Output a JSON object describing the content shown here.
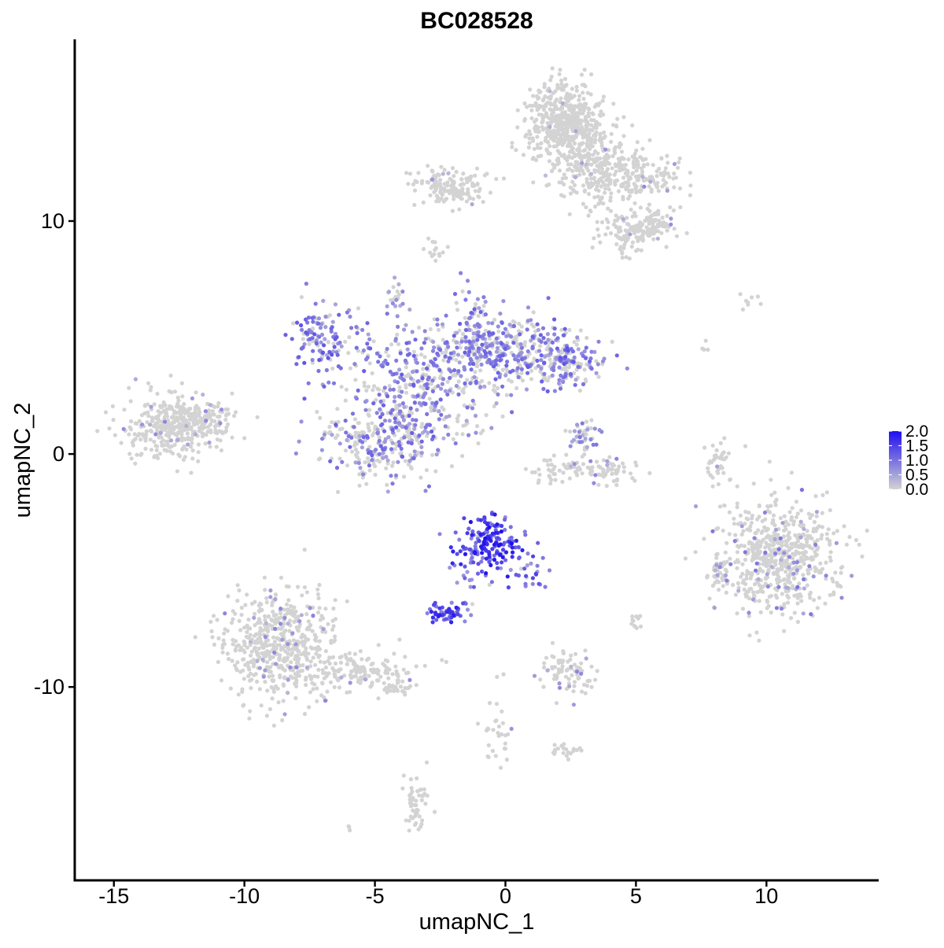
{
  "chart_data": {
    "type": "scatter",
    "title": "BC028528",
    "xlabel": "umapNC_1",
    "ylabel": "umapNC_2",
    "xlim": [
      -16.5,
      14.3
    ],
    "ylim": [
      -18.3,
      17.8
    ],
    "xticks": [
      -15,
      -10,
      -5,
      0,
      5,
      10
    ],
    "xtick_labels": [
      "-15",
      "-10",
      "-5",
      "0",
      "5",
      "10"
    ],
    "yticks": [
      -10,
      0,
      10
    ],
    "ytick_labels": [
      "-10",
      "0",
      "10"
    ],
    "grid": false,
    "legend": {
      "position": "right",
      "type": "colorbar",
      "title": "",
      "min": 0.0,
      "max": 2.0,
      "ticks": [
        0.0,
        0.5,
        1.0,
        1.5,
        2.0
      ],
      "tick_labels": [
        "0.0",
        "0.5",
        "1.0",
        "1.5",
        "2.0"
      ],
      "low_color": "#d3d3d3",
      "high_color": "#1f0ff0"
    },
    "colors": {
      "low": "#d3d3d3",
      "high": "#1f0ff0"
    },
    "expression_scale": "expression level 0.0 (grey) to 2.0 (blue)",
    "clusters": [
      {
        "cx": 2.3,
        "cy": 14.3,
        "sx": 0.7,
        "sy": 0.8,
        "n": 500,
        "expr_p": 0.01,
        "expr_max": 0.6
      },
      {
        "cx": 3.5,
        "cy": 12.5,
        "sx": 0.9,
        "sy": 1.0,
        "n": 260,
        "expr_p": 0.02,
        "expr_max": 0.7
      },
      {
        "cx": 5.0,
        "cy": 11.8,
        "sx": 0.9,
        "sy": 0.5,
        "n": 160,
        "expr_p": 0.03,
        "expr_max": 0.8
      },
      {
        "cx": 5.5,
        "cy": 9.7,
        "sx": 0.5,
        "sy": 0.4,
        "n": 110,
        "expr_p": 0.03,
        "expr_max": 0.7
      },
      {
        "cx": 4.5,
        "cy": 9.5,
        "sx": 0.5,
        "sy": 0.5,
        "n": 60,
        "expr_p": 0.04,
        "expr_max": 0.7
      },
      {
        "cx": -2.0,
        "cy": 11.5,
        "sx": 0.8,
        "sy": 0.4,
        "n": 150,
        "expr_p": 0.01,
        "expr_max": 0.6
      },
      {
        "cx": -2.7,
        "cy": 8.7,
        "sx": 0.2,
        "sy": 0.3,
        "n": 14,
        "expr_p": 0.0,
        "expr_max": 0.0
      },
      {
        "cx": -12.8,
        "cy": 1.2,
        "sx": 0.9,
        "sy": 0.7,
        "n": 330,
        "expr_p": 0.05,
        "expr_max": 0.8
      },
      {
        "cx": -11.6,
        "cy": 1.4,
        "sx": 0.6,
        "sy": 0.4,
        "n": 90,
        "expr_p": 0.04,
        "expr_max": 0.8
      },
      {
        "cx": -7.0,
        "cy": 5.0,
        "sx": 0.6,
        "sy": 0.7,
        "n": 120,
        "expr_p": 0.75,
        "expr_max": 1.3
      },
      {
        "cx": -3.0,
        "cy": 3.6,
        "sx": 1.5,
        "sy": 1.0,
        "n": 330,
        "expr_p": 0.55,
        "expr_max": 1.2
      },
      {
        "cx": 0.6,
        "cy": 4.5,
        "sx": 1.3,
        "sy": 0.8,
        "n": 300,
        "expr_p": 0.55,
        "expr_max": 1.2
      },
      {
        "cx": -1.2,
        "cy": 5.3,
        "sx": 0.4,
        "sy": 0.8,
        "n": 80,
        "expr_p": 0.6,
        "expr_max": 1.2
      },
      {
        "cx": 2.5,
        "cy": 4.0,
        "sx": 0.6,
        "sy": 0.5,
        "n": 110,
        "expr_p": 0.55,
        "expr_max": 1.3
      },
      {
        "cx": -5.3,
        "cy": 0.6,
        "sx": 1.0,
        "sy": 0.8,
        "n": 190,
        "expr_p": 0.45,
        "expr_max": 1.2
      },
      {
        "cx": -3.8,
        "cy": 1.2,
        "sx": 0.7,
        "sy": 1.1,
        "n": 170,
        "expr_p": 0.5,
        "expr_max": 1.2
      },
      {
        "cx": -4.2,
        "cy": 6.8,
        "sx": 0.2,
        "sy": 0.4,
        "n": 20,
        "expr_p": 0.6,
        "expr_max": 1.0
      },
      {
        "cx": -1.5,
        "cy": 1.0,
        "sx": 0.5,
        "sy": 0.5,
        "n": 20,
        "expr_p": 0.4,
        "expr_max": 1.0
      },
      {
        "cx": 3.0,
        "cy": 0.8,
        "sx": 0.3,
        "sy": 0.4,
        "n": 40,
        "expr_p": 0.5,
        "expr_max": 1.0
      },
      {
        "cx": 3.3,
        "cy": -0.7,
        "sx": 1.1,
        "sy": 0.3,
        "n": 110,
        "expr_p": 0.08,
        "expr_max": 0.8
      },
      {
        "cx": 10.5,
        "cy": -4.5,
        "sx": 1.1,
        "sy": 1.2,
        "n": 620,
        "expr_p": 0.1,
        "expr_max": 1.0
      },
      {
        "cx": 8.2,
        "cy": -5.0,
        "sx": 0.2,
        "sy": 0.4,
        "n": 30,
        "expr_p": 0.1,
        "expr_max": 0.8
      },
      {
        "cx": 8.1,
        "cy": -0.4,
        "sx": 0.25,
        "sy": 0.6,
        "n": 40,
        "expr_p": 0.02,
        "expr_max": 0.6
      },
      {
        "cx": -0.6,
        "cy": -3.8,
        "sx": 0.6,
        "sy": 0.6,
        "n": 170,
        "expr_p": 0.97,
        "expr_max": 2.0
      },
      {
        "cx": 0.8,
        "cy": -5.0,
        "sx": 0.5,
        "sy": 0.5,
        "n": 30,
        "expr_p": 0.8,
        "expr_max": 1.5
      },
      {
        "cx": -1.5,
        "cy": -5.8,
        "sx": 0.3,
        "sy": 0.7,
        "n": 25,
        "expr_p": 0.9,
        "expr_max": 1.6
      },
      {
        "cx": -2.4,
        "cy": -6.9,
        "sx": 0.35,
        "sy": 0.2,
        "n": 50,
        "expr_p": 0.9,
        "expr_max": 1.9
      },
      {
        "cx": -8.6,
        "cy": -8.2,
        "sx": 1.2,
        "sy": 1.2,
        "n": 560,
        "expr_p": 0.05,
        "expr_max": 0.8
      },
      {
        "cx": -5.6,
        "cy": -9.3,
        "sx": 1.0,
        "sy": 0.4,
        "n": 120,
        "expr_p": 0.04,
        "expr_max": 0.8
      },
      {
        "cx": -4.2,
        "cy": -10.0,
        "sx": 0.4,
        "sy": 0.2,
        "n": 30,
        "expr_p": 0.02,
        "expr_max": 0.6
      },
      {
        "cx": 2.4,
        "cy": -9.4,
        "sx": 0.5,
        "sy": 0.5,
        "n": 80,
        "expr_p": 0.06,
        "expr_max": 0.8
      },
      {
        "cx": 5.0,
        "cy": -7.2,
        "sx": 0.15,
        "sy": 0.2,
        "n": 12,
        "expr_p": 0.0,
        "expr_max": 0.0
      },
      {
        "cx": -3.5,
        "cy": -14.8,
        "sx": 0.25,
        "sy": 0.6,
        "n": 50,
        "expr_p": 0.0,
        "expr_max": 0.0
      },
      {
        "cx": -0.3,
        "cy": -11.8,
        "sx": 0.3,
        "sy": 0.8,
        "n": 30,
        "expr_p": 0.1,
        "expr_max": 0.7
      },
      {
        "cx": 2.3,
        "cy": -12.6,
        "sx": 0.3,
        "sy": 0.2,
        "n": 20,
        "expr_p": 0.0,
        "expr_max": 0.0
      },
      {
        "cx": 9.2,
        "cy": 6.7,
        "sx": 0.3,
        "sy": 0.15,
        "n": 8,
        "expr_p": 0.0,
        "expr_max": 0.0
      },
      {
        "cx": 7.6,
        "cy": 4.7,
        "sx": 0.1,
        "sy": 0.2,
        "n": 4,
        "expr_p": 0.0,
        "expr_max": 0.0
      },
      {
        "cx": -6.0,
        "cy": -16.1,
        "sx": 0.1,
        "sy": 0.1,
        "n": 3,
        "expr_p": 0.0,
        "expr_max": 0.0
      }
    ]
  }
}
